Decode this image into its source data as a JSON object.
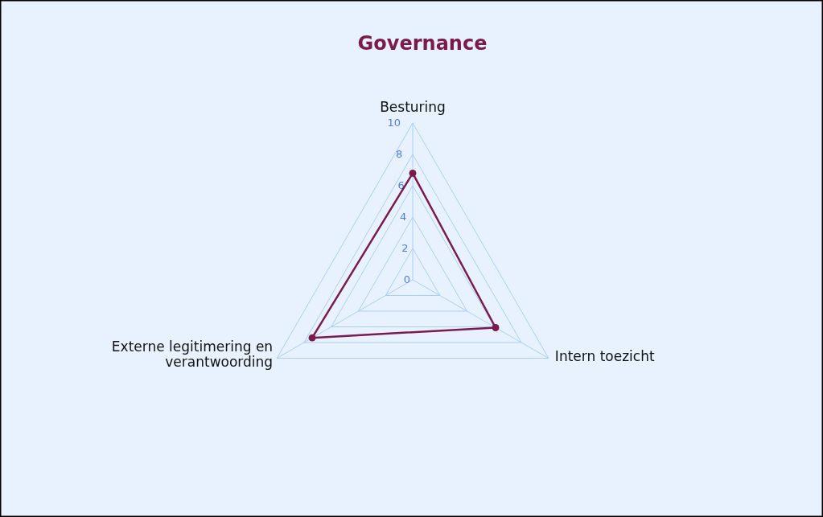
{
  "chart_data": {
    "type": "radar",
    "title": "Governance",
    "categories": [
      "Besturing",
      "Intern toezicht",
      "Externe legitimering en verantwoording"
    ],
    "series": [
      {
        "color": "#7b1a4e",
        "values": [
          6.8,
          6.1,
          7.4
        ]
      }
    ],
    "ylim": [
      0,
      10
    ],
    "yticks": [
      0,
      2,
      4,
      6,
      8,
      10
    ],
    "grid": true,
    "marker": "circle",
    "line_style": "solid"
  }
}
